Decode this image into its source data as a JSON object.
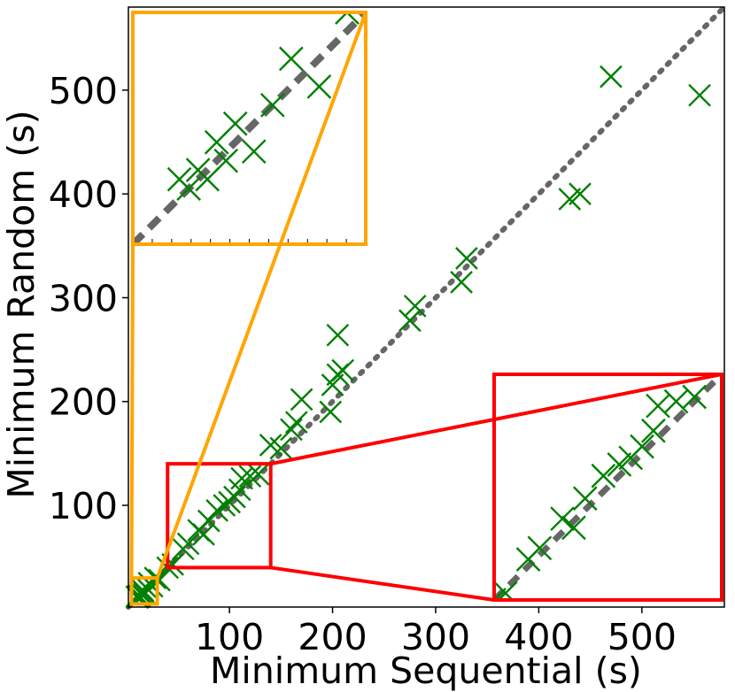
{
  "chart_data": {
    "type": "scatter",
    "title": "",
    "xlabel": "Minimum Sequential (s)",
    "ylabel": "Minimum Random (s)",
    "xlim": [
      2,
      580
    ],
    "ylim": [
      2,
      580
    ],
    "xticks": [
      100,
      200,
      300,
      400,
      500
    ],
    "yticks": [
      100,
      200,
      300,
      400,
      500
    ],
    "grid": false,
    "legend": "none",
    "colors": {
      "marker": "#008000",
      "diagonal": "#666666",
      "zoom_main": "#ff0000",
      "zoom_small": "#ffa500"
    },
    "marker": "x",
    "reference_line": {
      "style": "dotted",
      "from": [
        2,
        2
      ],
      "to": [
        580,
        580
      ]
    },
    "series": [
      {
        "points": [
          [
            556,
            495
          ],
          [
            470,
            513
          ],
          [
            440,
            400
          ],
          [
            430,
            395
          ],
          [
            330,
            338
          ],
          [
            325,
            315
          ],
          [
            280,
            292
          ],
          [
            275,
            278
          ],
          [
            205,
            264
          ],
          [
            210,
            230
          ],
          [
            205,
            226
          ],
          [
            200,
            216
          ],
          [
            198,
            190
          ],
          [
            170,
            202
          ],
          [
            165,
            180
          ],
          [
            160,
            173
          ],
          [
            150,
            155
          ],
          [
            140,
            158
          ],
          [
            128,
            130
          ],
          [
            120,
            128
          ],
          [
            112,
            126
          ],
          [
            110,
            115
          ],
          [
            105,
            108
          ],
          [
            100,
            103
          ],
          [
            95,
            100
          ],
          [
            88,
            95
          ],
          [
            80,
            85
          ],
          [
            75,
            72
          ],
          [
            70,
            76
          ],
          [
            60,
            63
          ],
          [
            55,
            58
          ],
          [
            45,
            43
          ],
          [
            40,
            40
          ],
          [
            32,
            28
          ],
          [
            28,
            30
          ],
          [
            25,
            22
          ],
          [
            22,
            25
          ],
          [
            20,
            20
          ],
          [
            18,
            15
          ],
          [
            16,
            18
          ],
          [
            15,
            14
          ],
          [
            14,
            16
          ],
          [
            13,
            12
          ],
          [
            12,
            13
          ],
          [
            11,
            11
          ],
          [
            10,
            12
          ]
        ]
      }
    ],
    "zoom_boxes": [
      {
        "color": "red",
        "source": {
          "x": [
            40,
            140
          ],
          "y": [
            40,
            140
          ]
        },
        "inset_placement": "lower-right"
      },
      {
        "color": "orange",
        "source": {
          "x": [
            5,
            30
          ],
          "y": [
            5,
            30
          ]
        },
        "inset_placement": "upper-left"
      }
    ]
  }
}
